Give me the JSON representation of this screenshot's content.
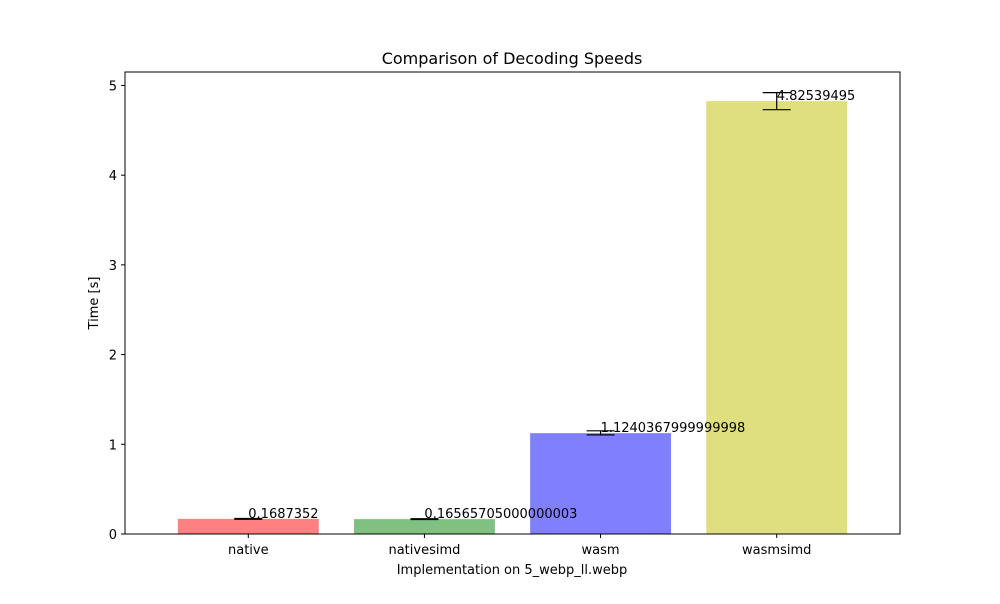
{
  "chart_data": {
    "type": "bar",
    "title": "Comparison of Decoding Speeds",
    "xlabel": "Implementation on 5_webp_ll.webp",
    "ylabel": "Time [s]",
    "categories": [
      "native",
      "nativesimd",
      "wasm",
      "wasmsimd"
    ],
    "values": [
      0.1687352,
      0.16565705,
      1.1240368,
      4.82539495
    ],
    "value_labels": [
      "0.1687352",
      "0.16565705000000003",
      "1.1240367999999998",
      "4.82539495"
    ],
    "error_low": [
      0.164,
      0.161,
      1.105,
      4.73
    ],
    "error_high": [
      0.173,
      0.17,
      1.15,
      4.92
    ],
    "colors": [
      "#ff8080",
      "#80c080",
      "#8080ff",
      "#dfdf80"
    ],
    "ylim": [
      0,
      5.15
    ],
    "yticks": [
      0,
      1,
      2,
      3,
      4,
      5
    ],
    "ytick_labels": [
      "0",
      "1",
      "2",
      "3",
      "4",
      "5"
    ],
    "grid": false,
    "legend": "none"
  }
}
